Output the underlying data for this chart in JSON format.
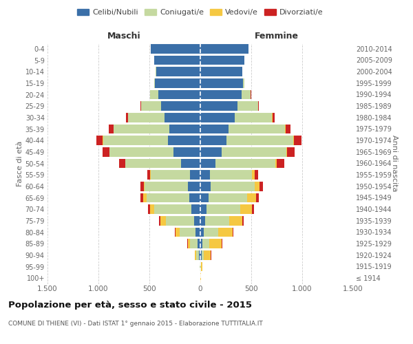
{
  "age_groups": [
    "100+",
    "95-99",
    "90-94",
    "85-89",
    "80-84",
    "75-79",
    "70-74",
    "65-69",
    "60-64",
    "55-59",
    "50-54",
    "45-49",
    "40-44",
    "35-39",
    "30-34",
    "25-29",
    "20-24",
    "15-19",
    "10-14",
    "5-9",
    "0-4"
  ],
  "birth_years": [
    "≤ 1914",
    "1915-1919",
    "1920-1924",
    "1925-1929",
    "1930-1934",
    "1935-1939",
    "1940-1944",
    "1945-1949",
    "1950-1954",
    "1955-1959",
    "1960-1964",
    "1965-1969",
    "1970-1974",
    "1975-1979",
    "1980-1984",
    "1985-1989",
    "1990-1994",
    "1995-1999",
    "2000-2004",
    "2005-2009",
    "2010-2014"
  ],
  "males": {
    "celibi": [
      2,
      3,
      15,
      25,
      45,
      60,
      85,
      110,
      120,
      100,
      190,
      265,
      320,
      305,
      350,
      385,
      415,
      445,
      435,
      455,
      485
    ],
    "coniugati": [
      1,
      4,
      28,
      75,
      160,
      280,
      370,
      420,
      425,
      385,
      545,
      625,
      635,
      545,
      360,
      195,
      75,
      10,
      2,
      1,
      0
    ],
    "vedovi": [
      0,
      1,
      8,
      25,
      38,
      50,
      38,
      28,
      12,
      8,
      4,
      4,
      3,
      2,
      1,
      1,
      1,
      0,
      0,
      0,
      0
    ],
    "divorziati": [
      0,
      0,
      2,
      4,
      7,
      13,
      22,
      27,
      32,
      28,
      55,
      65,
      65,
      45,
      22,
      8,
      3,
      0,
      0,
      0,
      0
    ]
  },
  "females": {
    "nubili": [
      2,
      3,
      12,
      22,
      35,
      48,
      62,
      82,
      100,
      92,
      150,
      210,
      258,
      278,
      338,
      368,
      408,
      420,
      410,
      430,
      470
    ],
    "coniugate": [
      1,
      4,
      22,
      68,
      140,
      235,
      330,
      380,
      435,
      415,
      585,
      635,
      655,
      555,
      368,
      200,
      85,
      10,
      2,
      1,
      0
    ],
    "vedove": [
      3,
      14,
      70,
      122,
      142,
      132,
      112,
      82,
      48,
      25,
      12,
      8,
      6,
      4,
      2,
      1,
      1,
      0,
      0,
      0,
      0
    ],
    "divorziate": [
      0,
      0,
      2,
      4,
      7,
      13,
      22,
      27,
      32,
      37,
      75,
      75,
      75,
      50,
      22,
      8,
      3,
      0,
      0,
      0,
      0
    ]
  },
  "colors": {
    "celibi": "#3a6fa8",
    "coniugati": "#c5d9a0",
    "vedovi": "#f5c842",
    "divorziati": "#cc2222"
  },
  "title": "Popolazione per età, sesso e stato civile - 2015",
  "subtitle": "COMUNE DI THIENE (VI) - Dati ISTAT 1° gennaio 2015 - Elaborazione TUTTITALIA.IT",
  "xlabel_left": "Maschi",
  "xlabel_right": "Femmine",
  "ylabel_left": "Fasce di età",
  "ylabel_right": "Anni di nascita",
  "xlim": 1500,
  "xticks": [
    -1500,
    -1000,
    -500,
    0,
    500,
    1000,
    1500
  ],
  "xticklabels": [
    "1.500",
    "1.000",
    "500",
    "0",
    "500",
    "1.000",
    "1.500"
  ],
  "legend_labels": [
    "Celibi/Nubili",
    "Coniugati/e",
    "Vedovi/e",
    "Divorziati/e"
  ],
  "background_color": "#ffffff",
  "grid_color": "#cccccc"
}
